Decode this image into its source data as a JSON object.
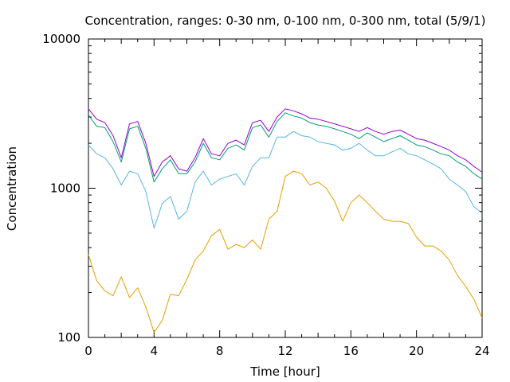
{
  "chart_data": {
    "type": "line",
    "title": "Concentration, ranges: 0-30 nm, 0-100 nm, 0-300 nm, total (5/9/1)",
    "xlabel": "Time [hour]",
    "ylabel": "Concentration",
    "xlim": [
      0,
      24
    ],
    "ylim": [
      100,
      10000
    ],
    "yscale": "log",
    "grid": false,
    "legend": "none",
    "x_ticks": [
      0,
      4,
      8,
      12,
      16,
      20,
      24
    ],
    "x_tick_labels": [
      "0",
      "4",
      "8",
      "12",
      "16",
      "20",
      "24"
    ],
    "y_ticks": [
      100,
      1000,
      10000
    ],
    "y_tick_labels": [
      "100",
      "1000",
      "10000"
    ],
    "x": [
      0,
      0.5,
      1,
      1.5,
      2,
      2.5,
      3,
      3.5,
      4,
      4.5,
      5,
      5.5,
      6,
      6.5,
      7,
      7.5,
      8,
      8.5,
      9,
      9.5,
      10,
      10.5,
      11,
      11.5,
      12,
      12.5,
      13,
      13.5,
      14,
      14.5,
      15,
      15.5,
      16,
      16.5,
      17,
      17.5,
      18,
      18.5,
      19,
      19.5,
      20,
      20.5,
      21,
      21.5,
      22,
      22.5,
      23,
      23.5,
      24
    ],
    "series": [
      {
        "color": "#e69f00",
        "values": [
          360,
          240,
          205,
          190,
          255,
          185,
          215,
          160,
          108,
          130,
          195,
          190,
          245,
          330,
          380,
          480,
          530,
          390,
          420,
          400,
          450,
          390,
          620,
          700,
          1200,
          1300,
          1250,
          1050,
          1100,
          1000,
          820,
          600,
          800,
          900,
          800,
          700,
          620,
          600,
          600,
          580,
          470,
          410,
          410,
          380,
          330,
          260,
          220,
          180,
          135
        ]
      },
      {
        "color": "#56b4e9",
        "values": [
          1950,
          1700,
          1600,
          1350,
          1050,
          1300,
          1250,
          950,
          540,
          790,
          880,
          620,
          700,
          1100,
          1300,
          1050,
          1150,
          1200,
          1250,
          1050,
          1400,
          1600,
          1600,
          2200,
          2200,
          2400,
          2250,
          2200,
          2050,
          2000,
          1950,
          1800,
          1850,
          2000,
          1800,
          1650,
          1650,
          1750,
          1850,
          1700,
          1650,
          1550,
          1450,
          1350,
          1150,
          1050,
          950,
          750,
          680
        ]
      },
      {
        "color": "#009e73",
        "values": [
          3100,
          2600,
          2550,
          2050,
          1500,
          2500,
          2600,
          1850,
          1100,
          1350,
          1550,
          1250,
          1250,
          1500,
          2000,
          1600,
          1550,
          1850,
          1950,
          1800,
          2550,
          2650,
          2200,
          2800,
          3200,
          3050,
          2950,
          2750,
          2650,
          2600,
          2500,
          2400,
          2300,
          2150,
          2350,
          2200,
          2050,
          2150,
          2250,
          2100,
          1950,
          1900,
          1800,
          1700,
          1650,
          1500,
          1400,
          1250,
          1150
        ]
      },
      {
        "color": "#9400d3",
        "values": [
          3400,
          2900,
          2750,
          2250,
          1600,
          2700,
          2800,
          2000,
          1200,
          1500,
          1650,
          1350,
          1300,
          1600,
          2150,
          1700,
          1650,
          2000,
          2100,
          1950,
          2750,
          2850,
          2400,
          3000,
          3400,
          3300,
          3150,
          2950,
          2900,
          2800,
          2700,
          2600,
          2500,
          2400,
          2550,
          2400,
          2300,
          2400,
          2450,
          2300,
          2150,
          2100,
          2000,
          1900,
          1800,
          1650,
          1550,
          1400,
          1280
        ]
      }
    ]
  }
}
